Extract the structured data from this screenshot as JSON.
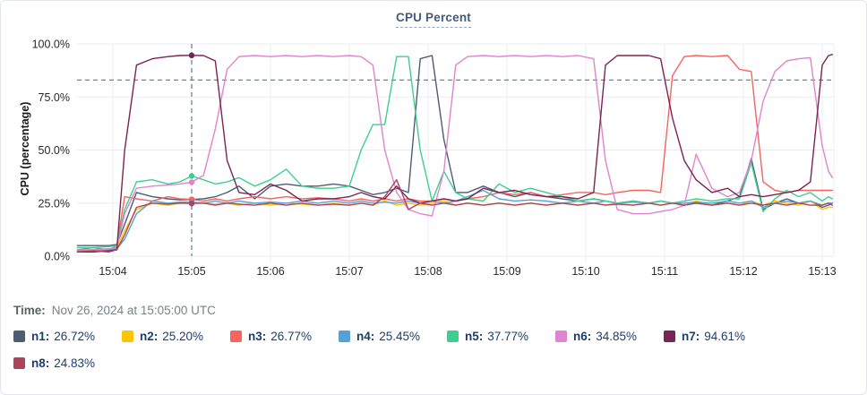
{
  "time": {
    "label": "Time:",
    "value": "Nov 26, 2024 at 15:05:00 UTC"
  },
  "chart_data": {
    "type": "line",
    "title": "CPU Percent",
    "ylabel": "CPU (percentage)",
    "ylim": [
      0,
      100
    ],
    "grid": true,
    "yticks": [
      0,
      25,
      50,
      75,
      100
    ],
    "ytick_labels": [
      "0.0%",
      "25.0%",
      "50.0%",
      "75.0%",
      "100.0%"
    ],
    "xticks": [
      4,
      5,
      6,
      7,
      8,
      9,
      10,
      11,
      12,
      13
    ],
    "xtick_labels": [
      "15:04",
      "15:05",
      "15:06",
      "15:07",
      "15:08",
      "15:09",
      "15:10",
      "15:11",
      "15:12",
      "15:13"
    ],
    "threshold_percent": 83,
    "crosshair_minute": 5,
    "crosshair_time": "15:05",
    "x_minutes": [
      3.55,
      3.75,
      3.95,
      4.05,
      4.15,
      4.3,
      4.5,
      4.7,
      4.85,
      5,
      5.15,
      5.3,
      5.45,
      5.6,
      5.8,
      6,
      6.2,
      6.4,
      6.6,
      6.8,
      7,
      7.15,
      7.3,
      7.45,
      7.6,
      7.75,
      7.9,
      8.05,
      8.2,
      8.35,
      8.5,
      8.7,
      8.9,
      9.1,
      9.3,
      9.5,
      9.7,
      9.9,
      10.1,
      10.25,
      10.4,
      10.6,
      10.8,
      10.95,
      11.1,
      11.25,
      11.4,
      11.6,
      11.8,
      11.95,
      12.1,
      12.25,
      12.4,
      12.55,
      12.7,
      12.85,
      13,
      13.08,
      13.13
    ],
    "series": [
      {
        "name": "n1",
        "color": "#4c5c74",
        "values": [
          5,
          5,
          5,
          5.5,
          15,
          30,
          28,
          27,
          26.5,
          26.72,
          27,
          28,
          30,
          33,
          27,
          33,
          34,
          33,
          33,
          34,
          33,
          31,
          29,
          30,
          32,
          30,
          93,
          94.5,
          55,
          30,
          30,
          33,
          30,
          28,
          30,
          28,
          27,
          26,
          27,
          26,
          25,
          26,
          25,
          26,
          25,
          24,
          25,
          24,
          26,
          28,
          46,
          22,
          25,
          27,
          25,
          26,
          23,
          24,
          25
        ]
      },
      {
        "name": "n2",
        "color": "#fdc500",
        "values": [
          3,
          3,
          3,
          4,
          12,
          22,
          25,
          24,
          25,
          25.2,
          25,
          24.5,
          25,
          24,
          25,
          24,
          25,
          24.5,
          24,
          25,
          24,
          25,
          24,
          26,
          24,
          25,
          24,
          25,
          26,
          24,
          25,
          24,
          25,
          24,
          25,
          24,
          25,
          24,
          25,
          24,
          25,
          24,
          25,
          24,
          25,
          24,
          26,
          24,
          25,
          24,
          26,
          24,
          26,
          25,
          24,
          26,
          22,
          23,
          23
        ]
      },
      {
        "name": "n3",
        "color": "#f4655f",
        "values": [
          3,
          4,
          3,
          5,
          28,
          27,
          26,
          28,
          27,
          26.77,
          26,
          27,
          26,
          27,
          28,
          27,
          28,
          27,
          27.5,
          27,
          26,
          27,
          26,
          27,
          26,
          27,
          26,
          26,
          27,
          26,
          27,
          28,
          30,
          29,
          30,
          28,
          29,
          30,
          30,
          29,
          30,
          31,
          31,
          30,
          85,
          94,
          94.5,
          94,
          94.5,
          88,
          87,
          35,
          31,
          30,
          31,
          31,
          31,
          31,
          31
        ]
      },
      {
        "name": "n4",
        "color": "#55a1d6",
        "values": [
          2.5,
          2.5,
          3,
          3.5,
          8,
          20,
          26,
          25,
          25.5,
          25.45,
          25,
          26,
          25,
          26,
          25,
          25.5,
          25,
          26,
          25,
          26,
          25,
          26,
          25,
          25.5,
          25,
          26,
          25,
          26,
          25,
          26,
          28,
          31,
          27,
          26,
          26.5,
          26,
          25,
          26,
          25,
          26,
          25,
          25.5,
          25,
          26,
          25,
          25,
          25.5,
          25,
          26,
          25,
          26,
          23,
          25,
          26,
          25,
          26,
          24,
          25,
          25
        ]
      },
      {
        "name": "n5",
        "color": "#3ecf8e",
        "values": [
          4,
          4,
          4.5,
          5,
          22,
          35,
          36,
          34,
          35,
          37.77,
          36,
          34,
          35,
          37,
          33,
          36,
          41,
          33,
          32,
          32,
          33,
          50,
          62,
          62,
          94,
          94,
          50,
          26,
          40,
          30,
          27,
          26,
          34,
          30,
          32,
          30,
          28,
          26,
          27,
          26,
          25,
          26,
          25,
          26,
          25,
          26,
          27,
          26,
          27,
          27,
          44,
          21,
          27,
          31,
          28,
          30,
          26,
          28,
          27
        ]
      },
      {
        "name": "n6",
        "color": "#dd85d0",
        "values": [
          3,
          3,
          3.5,
          4,
          20,
          32,
          33,
          33.5,
          34,
          34.85,
          38,
          60,
          88,
          94,
          94.5,
          94,
          94.5,
          94,
          94.5,
          94,
          94.5,
          94,
          90,
          50,
          30,
          22,
          20,
          19,
          40,
          90,
          94,
          94.5,
          94,
          94.5,
          94,
          94.5,
          94,
          94.5,
          93,
          45,
          22,
          20,
          20,
          21,
          22,
          24,
          48,
          32,
          28,
          30,
          45,
          73,
          87,
          92,
          93,
          93.5,
          52,
          40,
          37
        ]
      },
      {
        "name": "n7",
        "color": "#7b2355",
        "values": [
          2,
          2,
          2.5,
          3,
          50,
          90,
          93,
          94,
          94.5,
          94.61,
          94.5,
          92,
          45,
          30,
          29,
          34,
          31,
          26,
          27,
          27,
          28,
          30,
          28,
          27,
          33,
          27,
          25,
          26,
          27,
          26,
          27,
          32,
          30,
          31,
          29,
          28,
          28,
          27,
          30,
          90,
          94.5,
          94.5,
          94.5,
          93,
          65,
          45,
          36,
          30,
          32,
          28,
          29,
          28,
          29,
          30,
          31,
          35,
          90,
          94.5,
          95
        ]
      },
      {
        "name": "n8",
        "color": "#ab4459",
        "values": [
          2,
          2.5,
          2,
          3,
          10,
          23,
          25,
          24.5,
          25,
          24.83,
          25,
          24,
          25,
          24.5,
          24,
          25,
          24,
          25,
          24,
          24.5,
          24,
          25,
          24,
          28,
          36,
          22,
          25,
          24,
          25,
          24,
          25,
          24,
          25,
          24,
          25,
          24,
          25,
          24,
          25,
          24,
          24.5,
          24,
          25,
          24,
          25,
          24,
          25,
          24,
          25,
          24,
          25,
          24,
          25,
          24,
          25,
          24,
          24,
          25,
          24
        ]
      }
    ],
    "legend_values": [
      {
        "label": "n1:",
        "value": "26.72%"
      },
      {
        "label": "n2:",
        "value": "25.20%"
      },
      {
        "label": "n3:",
        "value": "26.77%"
      },
      {
        "label": "n4:",
        "value": "25.45%"
      },
      {
        "label": "n5:",
        "value": "37.77%"
      },
      {
        "label": "n6:",
        "value": "34.85%"
      },
      {
        "label": "n7:",
        "value": "94.61%"
      },
      {
        "label": "n8:",
        "value": "24.83%"
      }
    ]
  }
}
